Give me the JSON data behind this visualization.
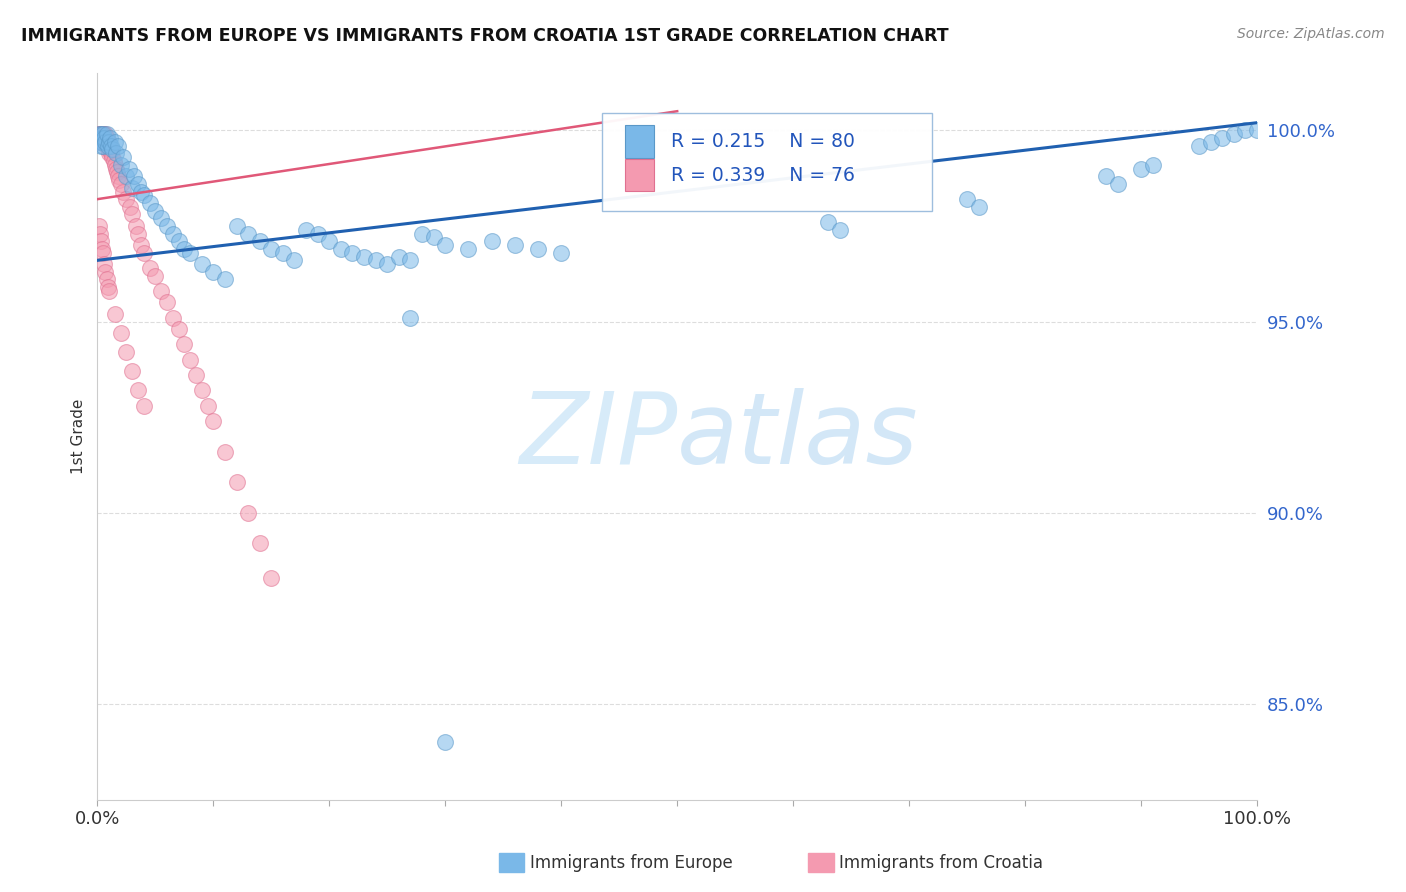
{
  "title": "IMMIGRANTS FROM EUROPE VS IMMIGRANTS FROM CROATIA 1ST GRADE CORRELATION CHART",
  "source": "Source: ZipAtlas.com",
  "ylabel": "1st Grade",
  "r_europe": 0.215,
  "n_europe": 80,
  "r_croatia": 0.339,
  "n_croatia": 76,
  "color_europe": "#7ab8e8",
  "color_croatia": "#f49ab0",
  "color_europe_edge": "#5a98c8",
  "color_croatia_edge": "#e07090",
  "trend_color_europe": "#2060b0",
  "trend_color_croatia": "#e05878",
  "watermark_color": "#d0e8f8",
  "xlim": [
    0.0,
    1.0
  ],
  "ylim": [
    0.825,
    1.015
  ],
  "ytick_vals": [
    0.85,
    0.9,
    0.95,
    1.0
  ],
  "ytick_labels": [
    "85.0%",
    "90.0%",
    "95.0%",
    "100.0%"
  ],
  "xtick_vals": [
    0.0,
    0.1,
    0.2,
    0.3,
    0.4,
    0.5,
    0.6,
    0.7,
    0.8,
    0.9,
    1.0
  ],
  "xtick_labels": [
    "0.0%",
    "",
    "",
    "",
    "",
    "",
    "",
    "",
    "",
    "",
    "100.0%"
  ],
  "blue_trend_x": [
    0.0,
    1.0
  ],
  "blue_trend_y": [
    0.966,
    1.002
  ],
  "pink_trend_x": [
    0.0,
    0.5
  ],
  "pink_trend_y": [
    0.982,
    1.005
  ],
  "europe_x": [
    0.001,
    0.002,
    0.002,
    0.003,
    0.003,
    0.004,
    0.004,
    0.005,
    0.005,
    0.006,
    0.007,
    0.008,
    0.009,
    0.01,
    0.011,
    0.012,
    0.013,
    0.015,
    0.016,
    0.018,
    0.02,
    0.022,
    0.025,
    0.027,
    0.03,
    0.032,
    0.035,
    0.038,
    0.04,
    0.045,
    0.05,
    0.055,
    0.06,
    0.065,
    0.07,
    0.075,
    0.08,
    0.09,
    0.1,
    0.11,
    0.12,
    0.13,
    0.14,
    0.15,
    0.16,
    0.17,
    0.18,
    0.19,
    0.2,
    0.21,
    0.22,
    0.23,
    0.24,
    0.25,
    0.26,
    0.27,
    0.28,
    0.29,
    0.3,
    0.32,
    0.34,
    0.36,
    0.38,
    0.4,
    0.27,
    0.63,
    0.64,
    0.75,
    0.76,
    0.87,
    0.88,
    0.9,
    0.91,
    0.95,
    0.96,
    0.97,
    0.98,
    0.99,
    1.0,
    0.3
  ],
  "europe_y": [
    0.999,
    0.998,
    0.997,
    0.999,
    0.996,
    0.998,
    0.997,
    0.999,
    0.996,
    0.998,
    0.997,
    0.999,
    0.996,
    0.997,
    0.998,
    0.996,
    0.995,
    0.997,
    0.994,
    0.996,
    0.991,
    0.993,
    0.988,
    0.99,
    0.985,
    0.988,
    0.986,
    0.984,
    0.983,
    0.981,
    0.979,
    0.977,
    0.975,
    0.973,
    0.971,
    0.969,
    0.968,
    0.965,
    0.963,
    0.961,
    0.975,
    0.973,
    0.971,
    0.969,
    0.968,
    0.966,
    0.974,
    0.973,
    0.971,
    0.969,
    0.968,
    0.967,
    0.966,
    0.965,
    0.967,
    0.966,
    0.973,
    0.972,
    0.97,
    0.969,
    0.971,
    0.97,
    0.969,
    0.968,
    0.951,
    0.976,
    0.974,
    0.982,
    0.98,
    0.988,
    0.986,
    0.99,
    0.991,
    0.996,
    0.997,
    0.998,
    0.999,
    1.0,
    1.0,
    0.84
  ],
  "croatia_x": [
    0.001,
    0.001,
    0.001,
    0.002,
    0.002,
    0.002,
    0.003,
    0.003,
    0.003,
    0.004,
    0.004,
    0.004,
    0.005,
    0.005,
    0.005,
    0.006,
    0.006,
    0.007,
    0.007,
    0.008,
    0.008,
    0.009,
    0.009,
    0.01,
    0.01,
    0.011,
    0.012,
    0.013,
    0.014,
    0.015,
    0.016,
    0.017,
    0.018,
    0.019,
    0.02,
    0.022,
    0.025,
    0.028,
    0.03,
    0.033,
    0.035,
    0.038,
    0.04,
    0.045,
    0.05,
    0.055,
    0.06,
    0.065,
    0.07,
    0.075,
    0.08,
    0.085,
    0.09,
    0.095,
    0.1,
    0.11,
    0.12,
    0.13,
    0.14,
    0.15,
    0.001,
    0.002,
    0.003,
    0.004,
    0.005,
    0.006,
    0.007,
    0.008,
    0.009,
    0.01,
    0.015,
    0.02,
    0.025,
    0.03,
    0.035,
    0.04
  ],
  "croatia_y": [
    0.999,
    0.998,
    0.997,
    0.999,
    0.998,
    0.997,
    0.999,
    0.998,
    0.997,
    0.999,
    0.998,
    0.997,
    0.999,
    0.998,
    0.997,
    0.999,
    0.998,
    0.999,
    0.997,
    0.998,
    0.996,
    0.997,
    0.995,
    0.996,
    0.994,
    0.995,
    0.994,
    0.993,
    0.992,
    0.991,
    0.99,
    0.989,
    0.988,
    0.987,
    0.986,
    0.984,
    0.982,
    0.98,
    0.978,
    0.975,
    0.973,
    0.97,
    0.968,
    0.964,
    0.962,
    0.958,
    0.955,
    0.951,
    0.948,
    0.944,
    0.94,
    0.936,
    0.932,
    0.928,
    0.924,
    0.916,
    0.908,
    0.9,
    0.892,
    0.883,
    0.975,
    0.973,
    0.971,
    0.969,
    0.968,
    0.965,
    0.963,
    0.961,
    0.959,
    0.958,
    0.952,
    0.947,
    0.942,
    0.937,
    0.932,
    0.928
  ]
}
